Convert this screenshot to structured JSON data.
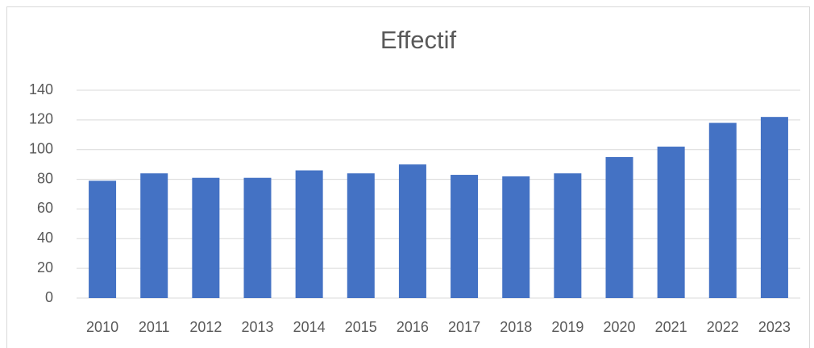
{
  "chart_data": {
    "type": "bar",
    "title": "Effectif",
    "categories": [
      "2010",
      "2011",
      "2012",
      "2013",
      "2014",
      "2015",
      "2016",
      "2017",
      "2018",
      "2019",
      "2020",
      "2021",
      "2022",
      "2023"
    ],
    "values": [
      79,
      84,
      81,
      81,
      86,
      84,
      90,
      83,
      82,
      84,
      95,
      102,
      118,
      122
    ],
    "color": "#4472c4",
    "ylim": [
      0,
      140
    ],
    "yticks": [
      0,
      20,
      40,
      60,
      80,
      100,
      120,
      140
    ],
    "grid": true
  }
}
